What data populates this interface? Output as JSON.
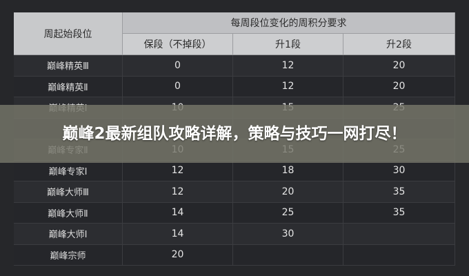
{
  "header": {
    "rank_column": "周起始段位",
    "group_title": "每周段位变化的周积分要求",
    "columns": [
      "保段（不掉段）",
      "升1段",
      "升2段"
    ]
  },
  "table": {
    "rows": [
      [
        "巅峰精英Ⅲ",
        0,
        12,
        20
      ],
      [
        "巅峰精英Ⅱ",
        0,
        12,
        20
      ],
      [
        "巅峰精英Ⅰ",
        10,
        15,
        25
      ],
      [
        "巅峰专家Ⅱ",
        10,
        15,
        25
      ],
      [
        "巅峰专家Ⅰ",
        12,
        18,
        30
      ],
      [
        "巅峰大师Ⅲ",
        12,
        20,
        35
      ],
      [
        "巅峰大师Ⅱ",
        14,
        25,
        35
      ],
      [
        "巅峰大师Ⅰ",
        14,
        30
      ],
      [
        "巅峰宗师",
        20
      ]
    ]
  },
  "banner": {
    "title": "巅峰2最新组队攻略详解，策略与技巧一网打尽！"
  }
}
